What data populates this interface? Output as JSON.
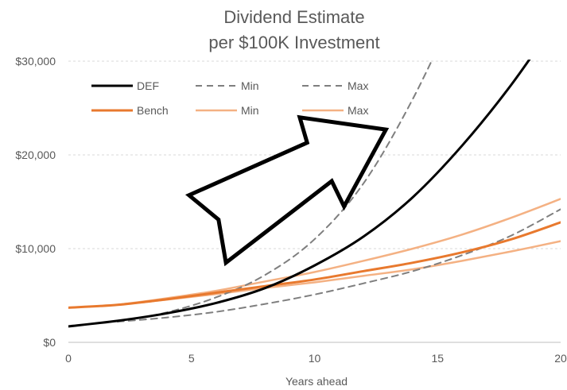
{
  "chart_data": {
    "type": "line",
    "title": "Dividend Estimate",
    "subtitle": "per $100K Investment",
    "xlabel": "Years ahead",
    "ylabel": "",
    "xlim": [
      0,
      20
    ],
    "ylim": [
      0,
      30000
    ],
    "x_ticks": [
      0,
      5,
      10,
      15,
      20
    ],
    "x_tick_labels": [
      "0",
      "5",
      "10",
      "15",
      "20"
    ],
    "y_ticks": [
      0,
      10000,
      20000,
      30000
    ],
    "y_tick_labels": [
      "$0",
      "$10,000",
      "$20,000",
      "$30,000"
    ],
    "grid": true,
    "legend_position": "top-left",
    "x": [
      0,
      2,
      4,
      6,
      8,
      10,
      12,
      14,
      16,
      18,
      20
    ],
    "series": [
      {
        "name": "DEF",
        "color": "#000000",
        "style": "solid",
        "width": 3,
        "values": [
          1700,
          2300,
          3100,
          4200,
          5800,
          8200,
          11300,
          15500,
          21000,
          27500,
          35000
        ]
      },
      {
        "name": "Min",
        "color": "#7f7f7f",
        "style": "dashed",
        "width": 2,
        "values": [
          null,
          2200,
          2650,
          3250,
          4100,
          5100,
          6300,
          7600,
          9300,
          11400,
          14200
        ]
      },
      {
        "name": "Max",
        "color": "#7f7f7f",
        "style": "dashed",
        "width": 2,
        "values": [
          null,
          2200,
          3200,
          4800,
          7200,
          11000,
          17000,
          26000,
          37000,
          null,
          null
        ]
      },
      {
        "name": "Bench",
        "color": "#e8792e",
        "style": "solid",
        "width": 3,
        "values": [
          3700,
          4000,
          4600,
          5300,
          6000,
          6700,
          7600,
          8500,
          9600,
          11000,
          12800
        ]
      },
      {
        "name": "Min",
        "color": "#f4b183",
        "style": "solid",
        "width": 2.5,
        "values": [
          null,
          4000,
          4550,
          5150,
          5800,
          6400,
          7100,
          7800,
          8700,
          9700,
          10800
        ]
      },
      {
        "name": "Max",
        "color": "#f4b183",
        "style": "solid",
        "width": 2.5,
        "values": [
          null,
          4000,
          4700,
          5500,
          6500,
          7500,
          8700,
          10000,
          11500,
          13300,
          15300
        ]
      }
    ],
    "annotations": [
      {
        "type": "arrow",
        "direction": "up-right",
        "fill": "#ffffff",
        "stroke": "#000000",
        "polygon": [
          [
            4.9,
            15700
          ],
          [
            6.1,
            13100
          ],
          [
            6.4,
            8500
          ],
          [
            10.7,
            17200
          ],
          [
            11.2,
            14500
          ],
          [
            12.9,
            22700
          ],
          [
            9.4,
            24000
          ],
          [
            9.7,
            21300
          ]
        ]
      }
    ]
  }
}
